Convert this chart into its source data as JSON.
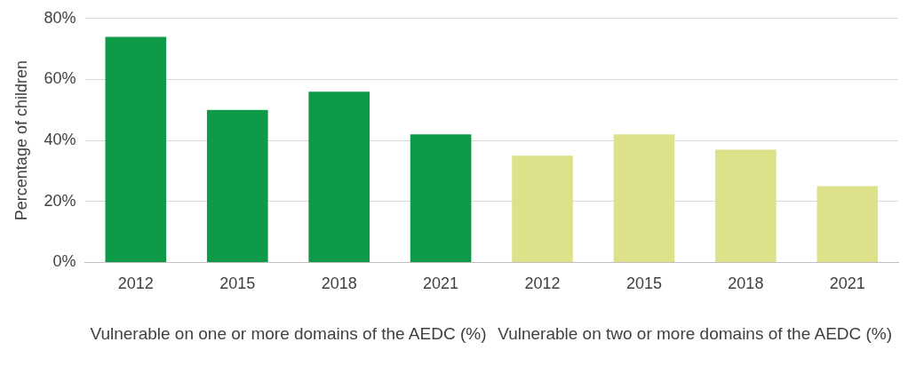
{
  "chart_data": {
    "type": "bar",
    "ylabel": "Percentage of children",
    "categories": [
      "2012",
      "2015",
      "2018",
      "2021",
      "2012",
      "2015",
      "2018",
      "2021"
    ],
    "values": [
      74,
      50,
      56,
      42,
      35,
      42,
      37,
      25
    ],
    "colors": [
      "#0f9a47",
      "#0f9a47",
      "#0f9a47",
      "#0f9a47",
      "#dde18a",
      "#dde18a",
      "#dde18a",
      "#dde18a"
    ],
    "ylim": [
      0,
      80
    ],
    "yticks": [
      {
        "value": 0,
        "label": "0%"
      },
      {
        "value": 20,
        "label": "20%"
      },
      {
        "value": 40,
        "label": "40%"
      },
      {
        "value": 60,
        "label": "60%"
      },
      {
        "value": 80,
        "label": "80%"
      }
    ],
    "grid": "y",
    "legend": false,
    "annotations": [
      "Vulnerable on one or more domains of the AEDC (%)",
      "Vulnerable on two or more domains of the AEDC (%)"
    ]
  }
}
